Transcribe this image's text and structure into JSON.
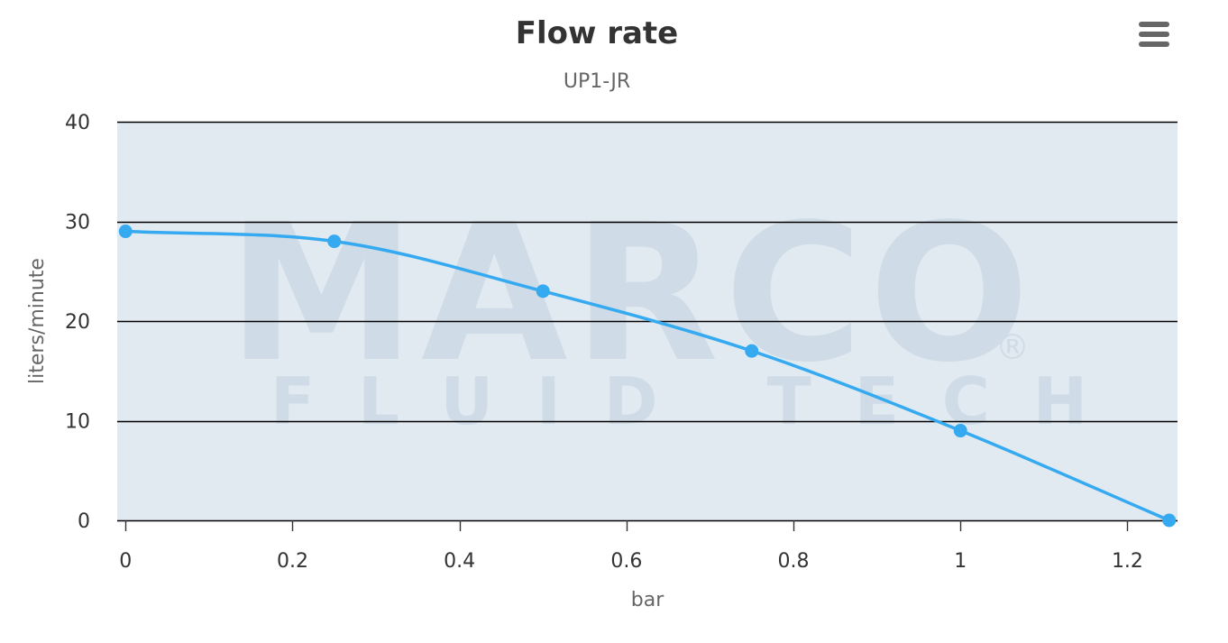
{
  "menu": {
    "icon": "hamburger-menu-icon"
  },
  "watermark": {
    "brand": "MARCO",
    "tagline": "FLUID TECH",
    "mark": "®"
  },
  "colors": {
    "series": "#35aaf1",
    "plot_background": "#e1e9f1",
    "grid": "#000000",
    "watermark": "#cfdbe6"
  },
  "chart_data": {
    "type": "line",
    "title": "Flow rate",
    "subtitle": "UP1-JR",
    "xlabel": "bar",
    "ylabel": "liters/minute",
    "xlim": [
      -0.01,
      1.26
    ],
    "ylim": [
      0,
      40
    ],
    "x_ticks": [
      0,
      0.2,
      0.4,
      0.6,
      0.8,
      1,
      1.2
    ],
    "x_tick_labels": [
      "0",
      "0.2",
      "0.4",
      "0.6",
      "0.8",
      "1",
      "1.2"
    ],
    "y_ticks": [
      0,
      10,
      20,
      30,
      40
    ],
    "y_tick_labels": [
      "0",
      "10",
      "20",
      "30",
      "40"
    ],
    "grid": true,
    "smooth": true,
    "series": [
      {
        "x": [
          0,
          0.25,
          0.5,
          0.75,
          1,
          1.25
        ],
        "y": [
          29,
          28,
          23,
          17,
          9,
          0
        ]
      }
    ]
  }
}
